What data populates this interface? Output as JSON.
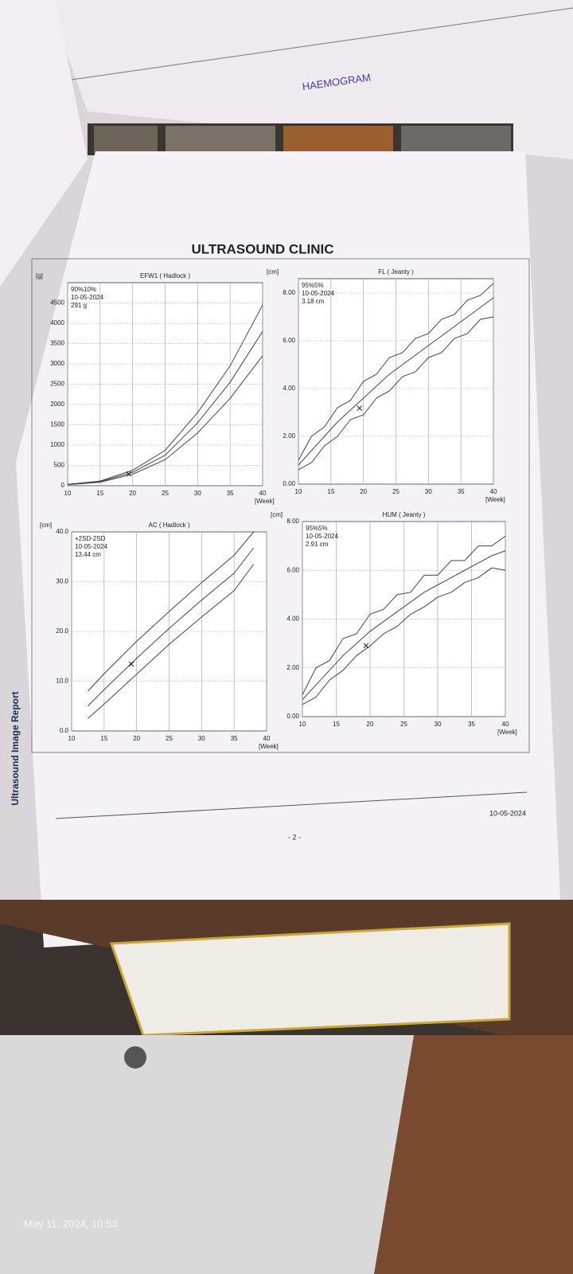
{
  "background": {
    "form_word": "HAEMOGRAM"
  },
  "header": {
    "title": "ULTRASOUND CLINIC"
  },
  "side_label": "Ultrasound Image Report",
  "chart_data": [
    {
      "type": "line",
      "title": "EFW1 ( Hadlock )",
      "y_unit": "[g]",
      "x_unit": "[Week]",
      "legend": "90%10%",
      "date": "10-05-2024",
      "measurement": "291 g",
      "xlim": [
        10,
        40
      ],
      "xticks": [
        10,
        15,
        20,
        25,
        30,
        35,
        40
      ],
      "ylim": [
        0,
        5000
      ],
      "yticks": [
        0,
        500,
        1000,
        1500,
        2000,
        2500,
        3000,
        3500,
        4000,
        4500
      ],
      "grid": true,
      "x": [
        10,
        15,
        20,
        25,
        30,
        35,
        40
      ],
      "series": [
        {
          "color": "#444444",
          "values": [
            35,
            115,
            380,
            870,
            1800,
            2950,
            4450
          ]
        },
        {
          "color": "#444444",
          "values": [
            30,
            100,
            330,
            750,
            1550,
            2550,
            3800
          ]
        },
        {
          "color": "#444444",
          "values": [
            25,
            85,
            285,
            640,
            1300,
            2150,
            3200
          ]
        }
      ],
      "point": {
        "x": 19.4,
        "y": 291
      }
    },
    {
      "type": "line",
      "title": "FL ( Jeanty )",
      "y_unit": "[cm]",
      "x_unit": "[Week]",
      "legend": "95%5%",
      "date": "10-05-2024",
      "measurement": "3.18 cm",
      "xlim": [
        10,
        40
      ],
      "xticks": [
        10,
        15,
        20,
        25,
        30,
        35,
        40
      ],
      "ylim": [
        0,
        8.6
      ],
      "yticks": [
        {
          "value": 0,
          "label": "0.00"
        },
        {
          "value": 2,
          "label": "2.00"
        },
        {
          "value": 4,
          "label": "4.00"
        },
        {
          "value": 6,
          "label": "6.00"
        },
        {
          "value": 8,
          "label": "8.00"
        }
      ],
      "grid": true,
      "x": [
        10,
        12,
        14,
        16,
        18,
        20,
        22,
        24,
        26,
        28,
        30,
        32,
        34,
        36,
        38,
        40
      ],
      "series": [
        {
          "color": "#444444",
          "values": [
            1.0,
            2.0,
            2.4,
            3.2,
            3.5,
            4.3,
            4.6,
            5.3,
            5.5,
            6.1,
            6.3,
            6.9,
            7.1,
            7.7,
            7.9,
            8.4
          ]
        },
        {
          "color": "#444444",
          "values": [
            0.8,
            1.4,
            2.0,
            2.6,
            3.1,
            3.6,
            4.1,
            4.6,
            5.0,
            5.4,
            5.8,
            6.2,
            6.6,
            7.0,
            7.4,
            7.8
          ]
        },
        {
          "color": "#444444",
          "values": [
            0.6,
            0.9,
            1.6,
            2.0,
            2.7,
            2.9,
            3.6,
            3.9,
            4.5,
            4.7,
            5.3,
            5.5,
            6.1,
            6.3,
            6.9,
            7.0
          ]
        }
      ],
      "point": {
        "x": 19.4,
        "y": 3.18
      }
    },
    {
      "type": "line",
      "title": "AC ( Hadlock )",
      "y_unit": "[cm]",
      "x_unit": "[Week]",
      "legend": "+2SD-2SD",
      "date": "10-05-2024",
      "measurement": "13.44 cm",
      "xlim": [
        10,
        40
      ],
      "xticks": [
        10,
        15,
        20,
        25,
        30,
        35,
        40
      ],
      "ylim": [
        0,
        40
      ],
      "yticks": [
        {
          "value": 0,
          "label": "0.0"
        },
        {
          "value": 10,
          "label": "10.0"
        },
        {
          "value": 20,
          "label": "20.0"
        },
        {
          "value": 30,
          "label": "30.0"
        },
        {
          "value": 40,
          "label": "40.0"
        }
      ],
      "grid": true,
      "x": [
        12.5,
        15,
        20,
        25,
        30,
        35,
        38
      ],
      "series": [
        {
          "color": "#444444",
          "values": [
            8,
            11.5,
            18,
            24,
            29.8,
            35.3,
            40
          ]
        },
        {
          "color": "#444444",
          "values": [
            5,
            8.3,
            14.6,
            20.6,
            26.3,
            31.7,
            36.8
          ]
        },
        {
          "color": "#444444",
          "values": [
            2.5,
            5.4,
            11.4,
            17.4,
            22.9,
            28.2,
            33.5
          ]
        }
      ],
      "point": {
        "x": 19.2,
        "y": 13.44
      }
    },
    {
      "type": "line",
      "title": "HUM ( Jeanty )",
      "y_unit": "[cm]",
      "x_unit": "[Week]",
      "legend": "95%5%",
      "date": "10-05-2024",
      "measurement": "2.91 cm",
      "xlim": [
        10,
        40
      ],
      "xticks": [
        10,
        15,
        20,
        25,
        30,
        35,
        40
      ],
      "ylim": [
        0,
        8
      ],
      "yticks": [
        {
          "value": 0,
          "label": "0.00"
        },
        {
          "value": 2,
          "label": "2.00"
        },
        {
          "value": 4,
          "label": "4.00"
        },
        {
          "value": 6,
          "label": "6.00"
        },
        {
          "value": 8,
          "label": "8.00"
        }
      ],
      "grid": true,
      "x": [
        10,
        12,
        14,
        16,
        18,
        20,
        22,
        24,
        26,
        28,
        30,
        32,
        34,
        36,
        38,
        40
      ],
      "series": [
        {
          "color": "#444444",
          "values": [
            0.9,
            2.0,
            2.3,
            3.2,
            3.4,
            4.2,
            4.4,
            5.0,
            5.1,
            5.8,
            5.8,
            6.4,
            6.4,
            7.0,
            7.0,
            7.4
          ]
        },
        {
          "color": "#444444",
          "values": [
            0.7,
            1.3,
            1.9,
            2.5,
            3.0,
            3.5,
            3.9,
            4.3,
            4.7,
            5.1,
            5.4,
            5.7,
            6.0,
            6.3,
            6.6,
            6.8
          ]
        },
        {
          "color": "#444444",
          "values": [
            0.5,
            0.8,
            1.5,
            1.9,
            2.5,
            2.9,
            3.4,
            3.7,
            4.2,
            4.5,
            4.9,
            5.1,
            5.5,
            5.7,
            6.1,
            6.0
          ]
        }
      ],
      "point": {
        "x": 19.4,
        "y": 2.91
      }
    }
  ],
  "footer": {
    "date": "10-05-2024",
    "page": "- 2 -"
  },
  "photo_timestamp": "May 11, 2024, 10:53"
}
